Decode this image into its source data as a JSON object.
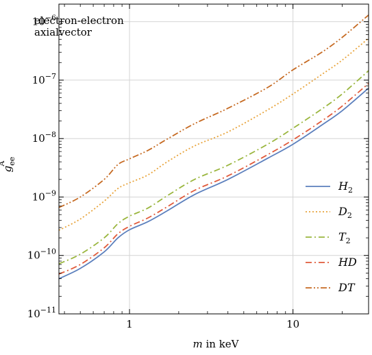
{
  "chart_data": {
    "type": "line",
    "annotation": [
      "electron-electron",
      "axialvector"
    ],
    "xlabel": {
      "var": "m",
      "rest": " in keV"
    },
    "ylabel": {
      "base": "g",
      "sub": "ee",
      "sup": "A"
    },
    "xscale": "log",
    "yscale": "log",
    "xlim": [
      0.37,
      29
    ],
    "ylim": [
      1e-11,
      2e-06
    ],
    "grid": true,
    "legend_position": "bottom-right",
    "x_ticks": [
      {
        "value": 1,
        "label": "1"
      },
      {
        "value": 10,
        "label": "10"
      }
    ],
    "y_ticks": [
      {
        "value": 1e-11,
        "base": "10",
        "exp": "−11"
      },
      {
        "value": 1e-10,
        "base": "10",
        "exp": "−10"
      },
      {
        "value": 1e-09,
        "base": "10",
        "exp": "−9"
      },
      {
        "value": 1e-08,
        "base": "10",
        "exp": "−8"
      },
      {
        "value": 1e-07,
        "base": "10",
        "exp": "−7"
      },
      {
        "value": 1e-06,
        "base": "10",
        "exp": "−6"
      }
    ],
    "series": [
      {
        "name": "H",
        "sub": "2",
        "color": "#5b7fbd",
        "dash": "none",
        "x": [
          0.37,
          0.5,
          0.7,
          0.85,
          1.0,
          1.3,
          1.7,
          2.5,
          4,
          7,
          10,
          15,
          20,
          29
        ],
        "y": [
          4e-11,
          6e-11,
          1.15e-10,
          2e-10,
          2.75e-10,
          3.8e-10,
          5.8e-10,
          1.1e-09,
          2e-09,
          4.6e-09,
          8e-09,
          1.7e-08,
          3e-08,
          7.3e-08
        ]
      },
      {
        "name": "D",
        "sub": "2",
        "color": "#e8a33a",
        "dash": "2,3",
        "x": [
          0.37,
          0.5,
          0.7,
          0.85,
          1.0,
          1.3,
          1.7,
          2.5,
          4,
          7,
          10,
          15,
          20,
          29
        ],
        "y": [
          2.7e-10,
          4.2e-10,
          8.5e-10,
          1.4e-09,
          1.75e-09,
          2.4e-09,
          4e-09,
          7.5e-09,
          1.3e-08,
          3.1e-08,
          5.8e-08,
          1.25e-07,
          2.2e-07,
          5.2e-07
        ]
      },
      {
        "name": "T",
        "sub": "2",
        "color": "#9ab63e",
        "dash": "9,4,2,4",
        "x": [
          0.37,
          0.5,
          0.7,
          0.85,
          1.0,
          1.3,
          1.7,
          2.5,
          4,
          7,
          10,
          15,
          20,
          29
        ],
        "y": [
          7.2e-11,
          1.05e-10,
          2e-10,
          3.5e-10,
          4.7e-10,
          6.5e-10,
          1.05e-09,
          2e-09,
          3.5e-09,
          8e-09,
          1.5e-08,
          3.2e-08,
          5.8e-08,
          1.45e-07
        ]
      },
      {
        "name": "HD",
        "sub": "",
        "color": "#e15a3a",
        "dash": "9,4,2,4",
        "x": [
          0.37,
          0.5,
          0.7,
          0.85,
          1.0,
          1.3,
          1.7,
          2.5,
          4,
          7,
          10,
          15,
          20,
          29
        ],
        "y": [
          4.8e-11,
          7e-11,
          1.35e-10,
          2.35e-10,
          3.15e-10,
          4.4e-10,
          6.8e-10,
          1.3e-09,
          2.3e-09,
          5.3e-09,
          9.5e-09,
          2e-08,
          3.6e-08,
          8.8e-08
        ]
      },
      {
        "name": "DT",
        "sub": "",
        "color": "#c66a22",
        "dash": "9,3,2,3,2,3",
        "x": [
          0.37,
          0.5,
          0.7,
          0.85,
          1.0,
          1.3,
          1.7,
          2.5,
          4,
          7,
          10,
          15,
          20,
          29
        ],
        "y": [
          6.6e-10,
          1e-09,
          2e-09,
          3.6e-09,
          4.5e-09,
          6.3e-09,
          9.8e-09,
          1.8e-08,
          3.3e-08,
          7.5e-08,
          1.5e-07,
          3e-07,
          5.4e-07,
          1.3e-06
        ]
      }
    ]
  }
}
